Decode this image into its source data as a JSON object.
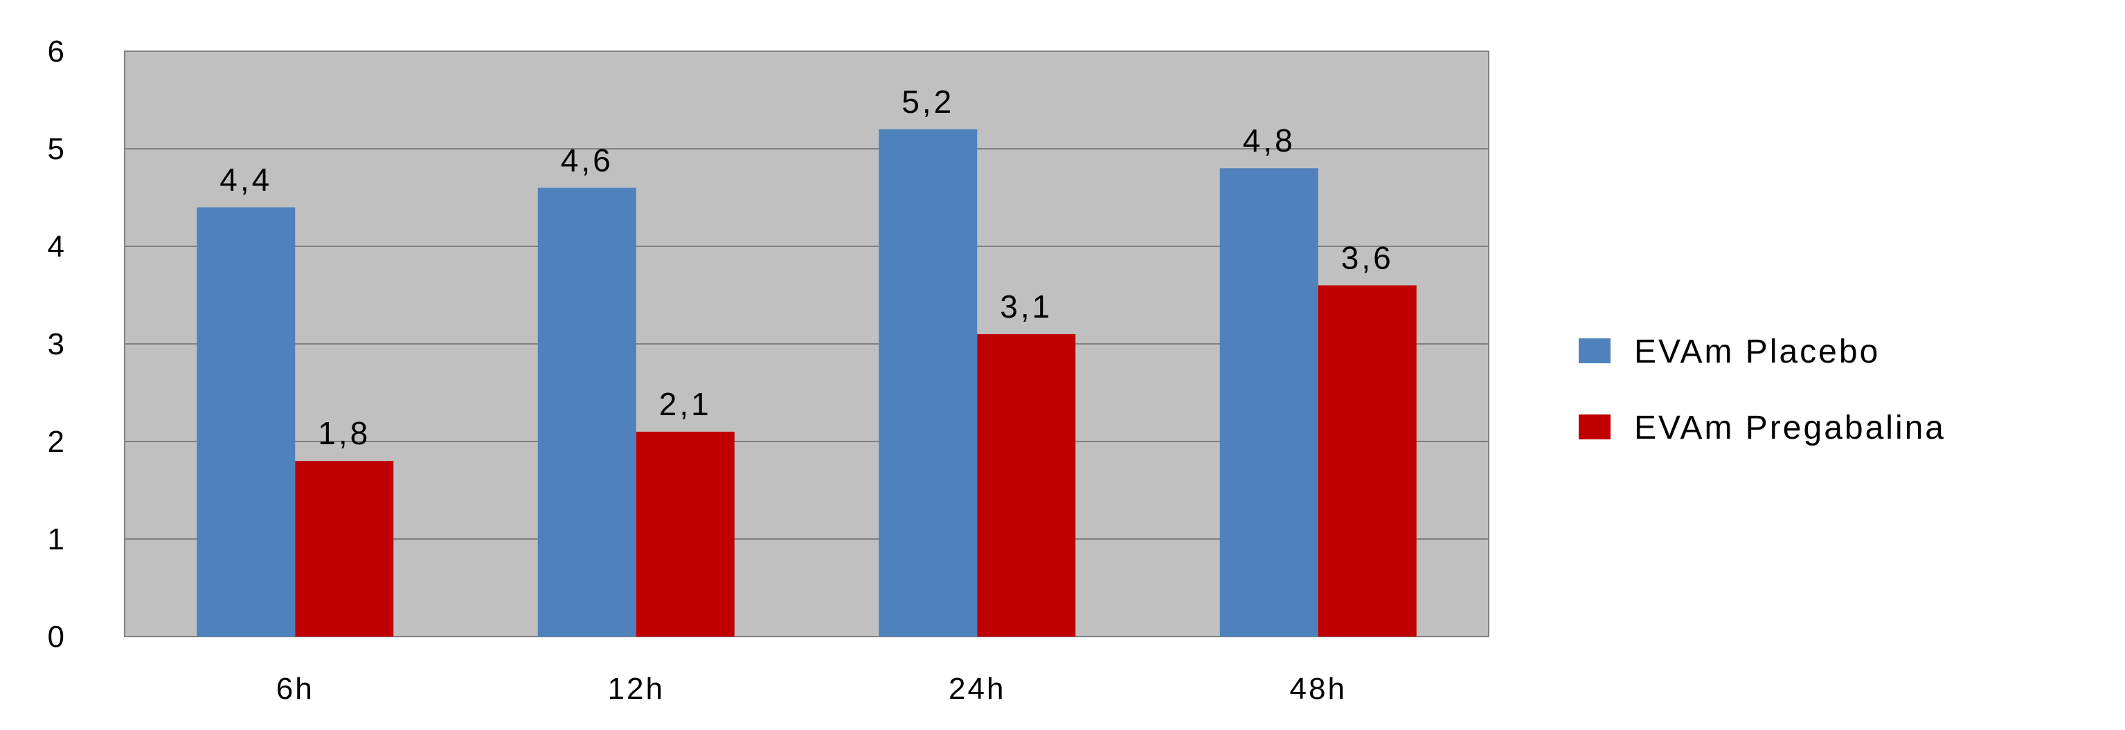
{
  "chart_data": {
    "type": "bar",
    "categories": [
      "6h",
      "12h",
      "24h",
      "48h"
    ],
    "series": [
      {
        "name": "EVAm Placebo",
        "color": "#4f81bd",
        "values": [
          4.4,
          4.6,
          5.2,
          4.8
        ],
        "labels": [
          "4,4",
          "4,6",
          "5,2",
          "4,8"
        ]
      },
      {
        "name": "EVAm Pregabalina",
        "color": "#c00000",
        "values": [
          1.8,
          2.1,
          3.1,
          3.6
        ],
        "labels": [
          "1,8",
          "2,1",
          "3,1",
          "3,6"
        ]
      }
    ],
    "y_ticks": [
      "0",
      "1",
      "2",
      "3",
      "4",
      "5",
      "6"
    ],
    "ylim": [
      0,
      6
    ],
    "grid": true,
    "legend_position": "right",
    "plot_background": "#c0c0c0",
    "gridline_color": "#808080"
  }
}
